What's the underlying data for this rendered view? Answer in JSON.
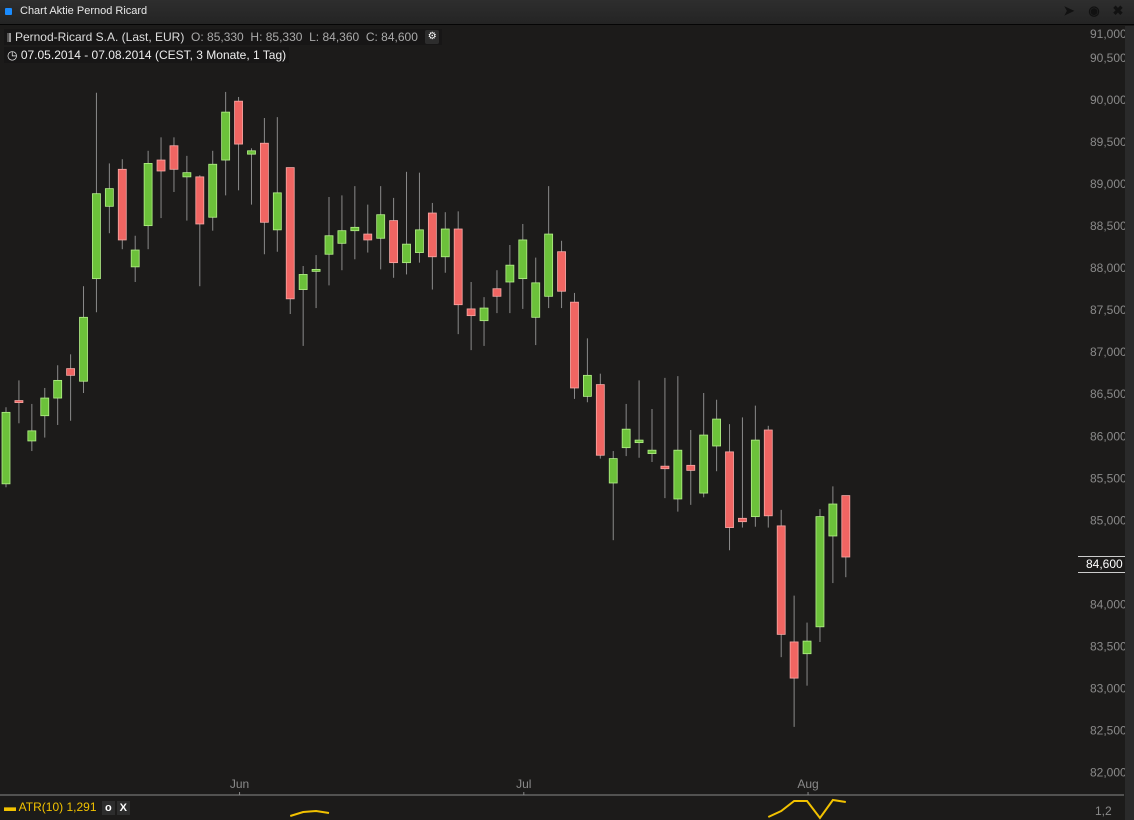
{
  "window": {
    "title": "Chart Aktie Pernod Ricard",
    "icons": [
      "export-icon",
      "settings-icon",
      "close-icon"
    ]
  },
  "header": {
    "instrument": "Pernod-Ricard S.A. (Last, EUR)",
    "open": "O: 85,330",
    "high": "H: 85,330",
    "low": "L: 84,360",
    "close": "C: 84,600",
    "range": "07.05.2014 - 07.08.2014 (CEST, 3 Monate, 1 Tag)"
  },
  "indicator": {
    "label": "ATR(10)",
    "value": "1,291",
    "settings": "o",
    "remove": "X",
    "color": "#f2c200",
    "axis_label": "1,2"
  },
  "last_price_label": "84,600",
  "colors": {
    "up": "#6cc13a",
    "down": "#f06562",
    "background": "#1c1b1a"
  },
  "chart_data": {
    "type": "candlestick",
    "ylim": [
      82000,
      91000
    ],
    "y_ticks": [
      "82,000",
      "82,500",
      "83,000",
      "83,500",
      "84,000",
      "84,500",
      "85,000",
      "85,500",
      "86,000",
      "86,500",
      "87,000",
      "87,500",
      "88,000",
      "88,500",
      "89,000",
      "89,500",
      "90,000",
      "90,500",
      "91,000"
    ],
    "x_ticks": [
      {
        "label": "Jun",
        "index": 18
      },
      {
        "label": "Jul",
        "index": 40
      },
      {
        "label": "Aug",
        "index": 62
      }
    ],
    "grid": false,
    "ohlc": [
      [
        85470,
        86380,
        85430,
        86320
      ],
      [
        86460,
        86700,
        86190,
        86440
      ],
      [
        85980,
        86420,
        85860,
        86100
      ],
      [
        86280,
        86610,
        86020,
        86490
      ],
      [
        86490,
        86880,
        86170,
        86700
      ],
      [
        86840,
        87010,
        86220,
        86760
      ],
      [
        86690,
        87820,
        86550,
        87450
      ],
      [
        87910,
        90120,
        87510,
        88920
      ],
      [
        88770,
        89280,
        88450,
        88980
      ],
      [
        89210,
        89330,
        88260,
        88370
      ],
      [
        88050,
        88420,
        87870,
        88250
      ],
      [
        88540,
        89430,
        88260,
        89280
      ],
      [
        89320,
        89590,
        88630,
        89190
      ],
      [
        89490,
        89590,
        88940,
        89210
      ],
      [
        89120,
        89370,
        88600,
        89170
      ],
      [
        89120,
        89140,
        87820,
        88560
      ],
      [
        88640,
        89430,
        88480,
        89270
      ],
      [
        89320,
        90130,
        88900,
        89890
      ],
      [
        90020,
        90070,
        88960,
        89510
      ],
      [
        89390,
        89460,
        88790,
        89430
      ],
      [
        89520,
        89820,
        88200,
        88580
      ],
      [
        88490,
        89830,
        88230,
        88930
      ],
      [
        89230,
        89230,
        87490,
        87670
      ],
      [
        87780,
        88060,
        87110,
        87960
      ],
      [
        88000,
        88190,
        87560,
        88020
      ],
      [
        88200,
        88880,
        87830,
        88420
      ],
      [
        88330,
        88900,
        88010,
        88480
      ],
      [
        88480,
        89010,
        88140,
        88520
      ],
      [
        88440,
        88790,
        88220,
        88370
      ],
      [
        88390,
        89010,
        88020,
        88670
      ],
      [
        88600,
        88870,
        87920,
        88100
      ],
      [
        88100,
        89180,
        87960,
        88320
      ],
      [
        88220,
        89170,
        88100,
        88490
      ],
      [
        88690,
        88810,
        87780,
        88170
      ],
      [
        88170,
        88700,
        87980,
        88500
      ],
      [
        88500,
        88710,
        87250,
        87600
      ],
      [
        87550,
        87870,
        87060,
        87470
      ],
      [
        87410,
        87690,
        87110,
        87560
      ],
      [
        87790,
        88010,
        87500,
        87700
      ],
      [
        87870,
        88310,
        87500,
        88070
      ],
      [
        87910,
        88560,
        87550,
        88370
      ],
      [
        87450,
        88160,
        87120,
        87860
      ],
      [
        87700,
        89010,
        87560,
        88440
      ],
      [
        88230,
        88360,
        87560,
        87760
      ],
      [
        87630,
        87740,
        86480,
        86610
      ],
      [
        86510,
        87200,
        86440,
        86760
      ],
      [
        86650,
        86780,
        85770,
        85810
      ],
      [
        85480,
        85860,
        84800,
        85770
      ],
      [
        85900,
        86420,
        85800,
        86120
      ],
      [
        85960,
        86700,
        85780,
        85990
      ],
      [
        85830,
        86360,
        85730,
        85870
      ],
      [
        85680,
        86730,
        85300,
        85650
      ],
      [
        85290,
        86750,
        85140,
        85870
      ],
      [
        85690,
        86110,
        85220,
        85630
      ],
      [
        85360,
        86550,
        85310,
        86050
      ],
      [
        85920,
        86470,
        85620,
        86240
      ],
      [
        85850,
        86180,
        84680,
        84950
      ],
      [
        85060,
        86260,
        84950,
        85020
      ],
      [
        85080,
        86400,
        84960,
        85990
      ],
      [
        86110,
        86160,
        84950,
        85090
      ],
      [
        84970,
        85160,
        83410,
        83680
      ],
      [
        83590,
        84140,
        82580,
        83160
      ],
      [
        83450,
        83820,
        83070,
        83600
      ],
      [
        83770,
        85170,
        83590,
        85080
      ],
      [
        84850,
        85440,
        84290,
        85230
      ],
      [
        85330,
        85330,
        84360,
        84600
      ]
    ],
    "atr_visible": [
      [
        22,
        1.15
      ],
      [
        23,
        1.19
      ],
      [
        24,
        1.2
      ],
      [
        25,
        1.18
      ],
      [
        59,
        1.14
      ],
      [
        60,
        1.2
      ],
      [
        61,
        1.3
      ],
      [
        62,
        1.3
      ],
      [
        63,
        1.13
      ],
      [
        64,
        1.31
      ],
      [
        65,
        1.29
      ]
    ]
  }
}
